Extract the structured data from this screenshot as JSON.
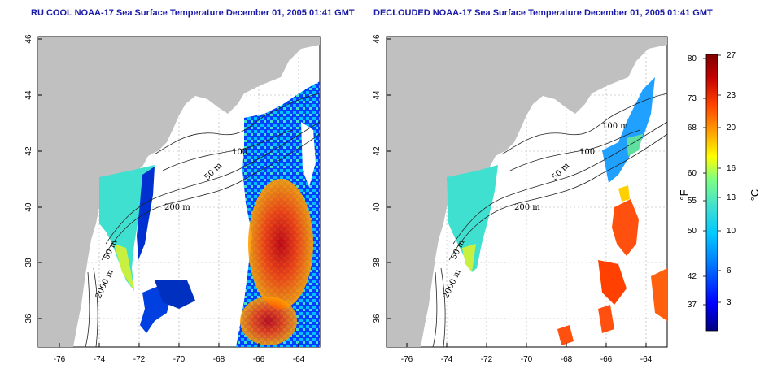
{
  "maps": {
    "left": {
      "title": "RU COOL NOAA-17 Sea Surface Temperature December 01, 2005 01:41 GMT",
      "contour_labels": [
        "200 m",
        "100",
        "50 m",
        "2000 m",
        "50 m"
      ]
    },
    "right": {
      "title": "DECLOUDED NOAA-17 Sea Surface Temperature December 01, 2005 01:41 GMT",
      "contour_labels": [
        "100 m",
        "100",
        "50 m",
        "200 m",
        "2000 m",
        "50 m"
      ]
    }
  },
  "axes": {
    "lat_ticks": [
      "46",
      "44",
      "42",
      "40",
      "38",
      "36"
    ],
    "lon_ticks": [
      "-76",
      "-74",
      "-72",
      "-70",
      "-68",
      "-66",
      "-64"
    ]
  },
  "colorbar": {
    "fahrenheit_ticks": [
      "80",
      "73",
      "68",
      "60",
      "55",
      "50",
      "42",
      "37"
    ],
    "celsius_ticks": [
      "27",
      "23",
      "20",
      "16",
      "13",
      "10",
      "6",
      "3"
    ],
    "fahrenheit_unit": "°F",
    "celsius_unit": "°C",
    "colors": [
      "#000080",
      "#0000ff",
      "#0080ff",
      "#00c8ff",
      "#40e0d0",
      "#80ff80",
      "#ffff00",
      "#ffa000",
      "#ff4000",
      "#c00000",
      "#800000"
    ]
  },
  "colors": {
    "land": "#c0c0c0",
    "ocean": "#ffffff",
    "title": "#1a1aa6"
  }
}
